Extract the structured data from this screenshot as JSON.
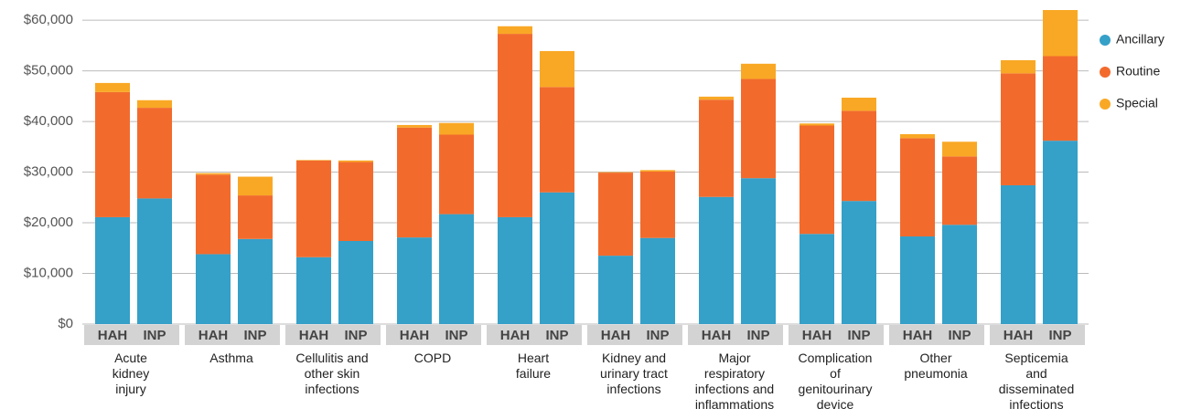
{
  "chart_data": {
    "type": "grouped_stacked_bar",
    "categories": [
      "Acute\nkidney\ninjury",
      "Asthma",
      "Cellulitis and\nother skin\ninfections",
      "COPD",
      "Heart\nfailure",
      "Kidney and\nurinary tract\ninfections",
      "Major\nrespiratory\ninfections and\ninflammations",
      "Complication\nof\ngenitourinary\ndevice",
      "Other\npneumonia",
      "Septicemia\nand\ndisseminated\ninfections"
    ],
    "groups": [
      "HAH",
      "INP"
    ],
    "series": [
      {
        "name": "Ancillary",
        "color": "#35a0c8",
        "values": [
          [
            21100,
            24800
          ],
          [
            13800,
            16800
          ],
          [
            13200,
            16400
          ],
          [
            17100,
            21700
          ],
          [
            21100,
            26000
          ],
          [
            13500,
            17000
          ],
          [
            25100,
            28800
          ],
          [
            17800,
            24300
          ],
          [
            17300,
            19600
          ],
          [
            27400,
            36200
          ]
        ]
      },
      {
        "name": "Routine",
        "color": "#f26b2d",
        "values": [
          [
            24700,
            17900
          ],
          [
            15700,
            8600
          ],
          [
            19100,
            15600
          ],
          [
            21700,
            15700
          ],
          [
            36200,
            20800
          ],
          [
            16400,
            13100
          ],
          [
            19200,
            19600
          ],
          [
            21400,
            17800
          ],
          [
            19400,
            13500
          ],
          [
            22100,
            16700
          ]
        ]
      },
      {
        "name": "Special",
        "color": "#f9a825",
        "values": [
          [
            1800,
            1500
          ],
          [
            300,
            3700
          ],
          [
            100,
            300
          ],
          [
            500,
            2300
          ],
          [
            1500,
            7100
          ],
          [
            100,
            300
          ],
          [
            600,
            3000
          ],
          [
            400,
            2600
          ],
          [
            800,
            2900
          ],
          [
            2600,
            9100
          ]
        ]
      }
    ],
    "ylim": [
      0,
      62000
    ],
    "yticks": [
      {
        "value": 0,
        "label": "$0"
      },
      {
        "value": 10000,
        "label": "$10,000"
      },
      {
        "value": 20000,
        "label": "$20,000"
      },
      {
        "value": 30000,
        "label": "$30,000"
      },
      {
        "value": 40000,
        "label": "$40,000"
      },
      {
        "value": 50000,
        "label": "$50,000"
      },
      {
        "value": 60000,
        "label": "$60,000"
      }
    ],
    "grid": true,
    "legend": "right"
  }
}
